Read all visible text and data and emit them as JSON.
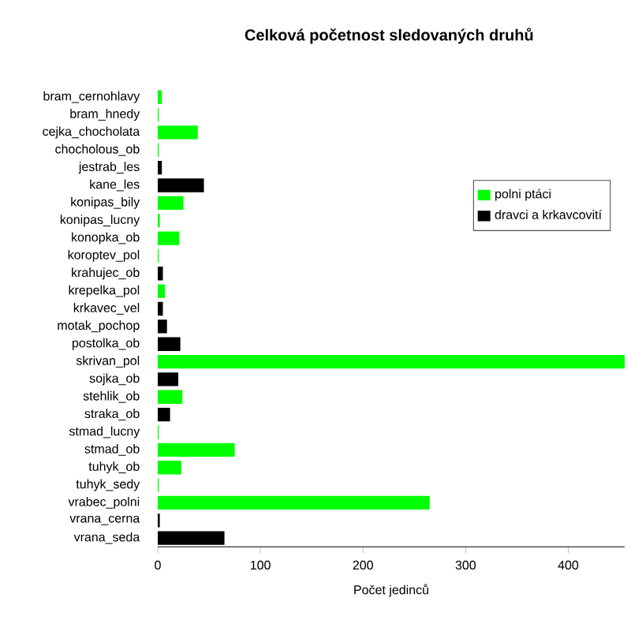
{
  "chart_data": {
    "type": "bar",
    "orientation": "horizontal",
    "title": "Celková početnost sledovaných druhů",
    "xlabel": "Počet jedinců",
    "categories": [
      "bram_cernohlavy",
      "bram_hnedy",
      "cejka_chocholata",
      "chocholous_ob",
      "jestrab_les",
      "kane_les",
      "konipas_bily",
      "konipas_lucny",
      "konopka_ob",
      "koroptev_pol",
      "krahujec_ob",
      "krepelka_pol",
      "krkavec_vel",
      "motak_pochop",
      "postolka_ob",
      "skrivan_pol",
      "sojka_ob",
      "stehlik_ob",
      "straka_ob",
      "stmad_lucny",
      "stmad_ob",
      "tuhyk_ob",
      "tuhyk_sedy",
      "vrabec_polni",
      "vrana_cerna",
      "vrana_seda"
    ],
    "series": [
      {
        "name": "polni ptáci",
        "color": "#00ff00",
        "values": [
          4,
          1,
          39,
          1,
          null,
          null,
          25,
          2,
          21,
          1,
          null,
          7,
          null,
          null,
          null,
          455,
          null,
          24,
          null,
          1,
          75,
          23,
          1,
          265,
          null,
          null
        ]
      },
      {
        "name": "dravci a krkavcovití",
        "color": "#000000",
        "values": [
          null,
          null,
          null,
          null,
          4,
          45,
          null,
          null,
          null,
          null,
          5,
          null,
          5,
          9,
          22,
          null,
          20,
          null,
          12,
          null,
          null,
          null,
          null,
          null,
          2,
          65
        ]
      }
    ],
    "xlim": [
      0,
      455
    ],
    "xticks": [
      0,
      100,
      200,
      300,
      400
    ],
    "legend": "top right"
  }
}
